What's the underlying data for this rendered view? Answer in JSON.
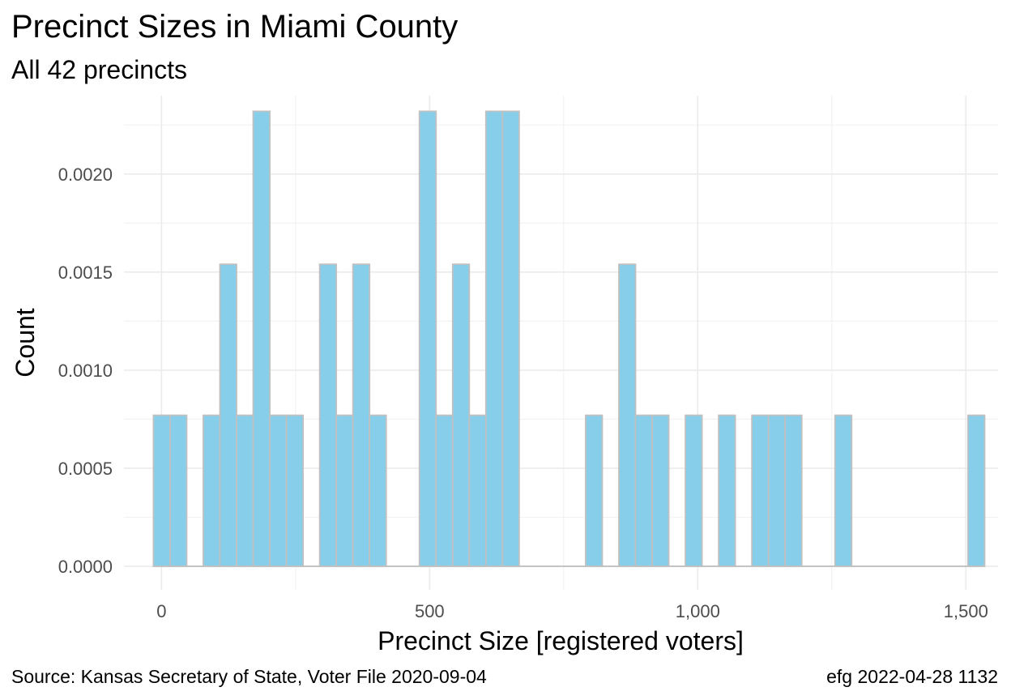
{
  "chart_data": {
    "type": "bar",
    "title": "Precinct Sizes in Miami County",
    "subtitle": "All 42 precincts",
    "xlabel": "Precinct Size [registered voters]",
    "ylabel": "Count",
    "caption_left": "Source:  Kansas Secretary of State, Voter File  2020-09-04",
    "caption_right": "efg 2022-04-28 1132",
    "bin_width": 31,
    "xlim": [
      -70,
      1560
    ],
    "ylim": [
      -0.00012,
      0.0024
    ],
    "x_ticks": [
      {
        "value": 0,
        "label": "0"
      },
      {
        "value": 500,
        "label": "500"
      },
      {
        "value": 1000,
        "label": "1,000"
      },
      {
        "value": 1500,
        "label": "1,500"
      }
    ],
    "y_ticks": [
      {
        "value": 0,
        "label": "0.0000"
      },
      {
        "value": 0.0005,
        "label": "0.0005"
      },
      {
        "value": 0.001,
        "label": "0.0010"
      },
      {
        "value": 0.0015,
        "label": "0.0015"
      },
      {
        "value": 0.002,
        "label": "0.0020"
      }
    ],
    "grid": true,
    "legend": "none",
    "bins": [
      {
        "start": -15,
        "end": 16,
        "value": 0.00077
      },
      {
        "start": 16,
        "end": 47,
        "value": 0.00077
      },
      {
        "start": 78,
        "end": 109,
        "value": 0.00077
      },
      {
        "start": 109,
        "end": 140,
        "value": 0.00154
      },
      {
        "start": 140,
        "end": 171,
        "value": 0.00077
      },
      {
        "start": 171,
        "end": 202,
        "value": 0.00232
      },
      {
        "start": 202,
        "end": 233,
        "value": 0.00077
      },
      {
        "start": 233,
        "end": 264,
        "value": 0.00077
      },
      {
        "start": 295,
        "end": 326,
        "value": 0.00154
      },
      {
        "start": 326,
        "end": 357,
        "value": 0.00077
      },
      {
        "start": 357,
        "end": 388,
        "value": 0.00154
      },
      {
        "start": 388,
        "end": 419,
        "value": 0.00077
      },
      {
        "start": 481,
        "end": 512,
        "value": 0.00232
      },
      {
        "start": 512,
        "end": 543,
        "value": 0.00077
      },
      {
        "start": 543,
        "end": 574,
        "value": 0.00154
      },
      {
        "start": 574,
        "end": 605,
        "value": 0.00077
      },
      {
        "start": 605,
        "end": 636,
        "value": 0.00232
      },
      {
        "start": 636,
        "end": 667,
        "value": 0.00232
      },
      {
        "start": 791,
        "end": 822,
        "value": 0.00077
      },
      {
        "start": 853,
        "end": 884,
        "value": 0.00154
      },
      {
        "start": 884,
        "end": 915,
        "value": 0.00077
      },
      {
        "start": 915,
        "end": 946,
        "value": 0.00077
      },
      {
        "start": 977,
        "end": 1008,
        "value": 0.00077
      },
      {
        "start": 1039,
        "end": 1070,
        "value": 0.00077
      },
      {
        "start": 1101,
        "end": 1132,
        "value": 0.00077
      },
      {
        "start": 1132,
        "end": 1163,
        "value": 0.00077
      },
      {
        "start": 1163,
        "end": 1194,
        "value": 0.00077
      },
      {
        "start": 1256,
        "end": 1287,
        "value": 0.00077
      },
      {
        "start": 1504,
        "end": 1535,
        "value": 0.00077
      }
    ],
    "colors": {
      "bar_fill": "#87ceeb",
      "bar_stroke": "#c0c0c0",
      "grid_major": "#ebebeb",
      "grid_minor": "#f2f2f2",
      "tick_text": "#4d4d4d"
    }
  }
}
